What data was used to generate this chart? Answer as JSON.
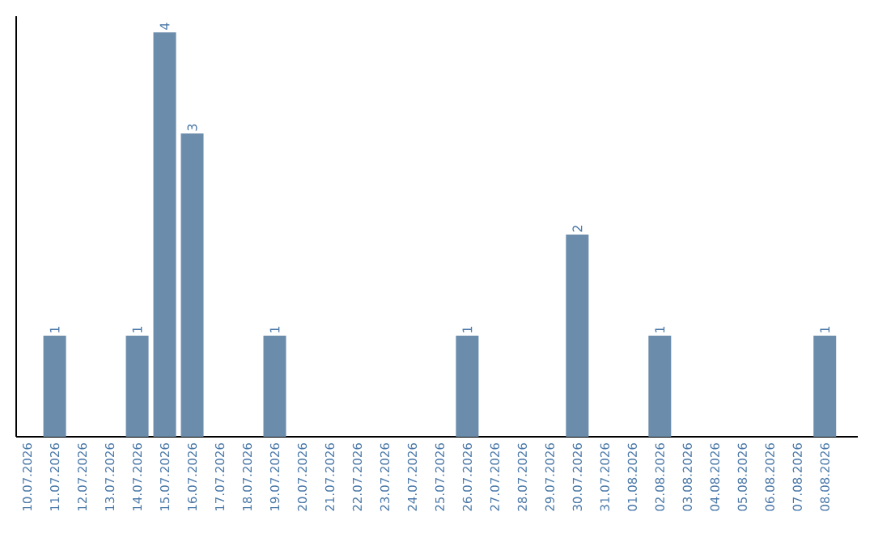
{
  "chart_data": {
    "type": "bar",
    "categories": [
      "10.07.2026",
      "11.07.2026",
      "12.07.2026",
      "13.07.2026",
      "14.07.2026",
      "15.07.2026",
      "16.07.2026",
      "17.07.2026",
      "18.07.2026",
      "19.07.2026",
      "20.07.2026",
      "21.07.2026",
      "22.07.2026",
      "23.07.2026",
      "24.07.2026",
      "25.07.2026",
      "26.07.2026",
      "27.07.2026",
      "28.07.2026",
      "29.07.2026",
      "30.07.2026",
      "31.07.2026",
      "01.08.2026",
      "02.08.2026",
      "03.08.2026",
      "04.08.2026",
      "05.08.2026",
      "06.08.2026",
      "07.08.2026",
      "08.08.2026"
    ],
    "values": [
      0,
      1,
      0,
      0,
      1,
      4,
      3,
      0,
      0,
      1,
      0,
      0,
      0,
      0,
      0,
      0,
      1,
      0,
      0,
      0,
      2,
      0,
      0,
      1,
      0,
      0,
      0,
      0,
      0,
      1
    ],
    "value_labels": [
      null,
      "1",
      null,
      null,
      "1",
      "4",
      "3",
      null,
      null,
      "1",
      null,
      null,
      null,
      null,
      null,
      null,
      "1",
      null,
      null,
      null,
      "2",
      null,
      null,
      "1",
      null,
      null,
      null,
      null,
      null,
      "1"
    ],
    "color": "#6b8cab",
    "ylim": [
      0,
      4
    ],
    "tick_labels": "x",
    "grid": false
  }
}
